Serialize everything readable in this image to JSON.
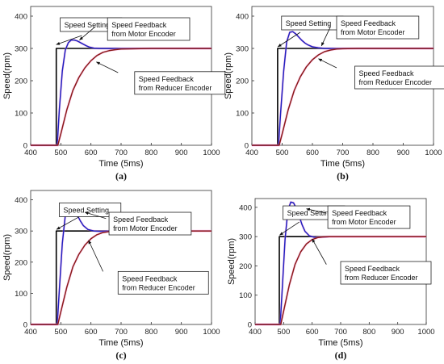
{
  "chart_data": [
    {
      "type": "line",
      "caption": "(a)",
      "xlabel": "Time (5ms)",
      "ylabel": "Speed(rpm)",
      "xlim": [
        400,
        1000
      ],
      "ylim": [
        0,
        430
      ],
      "xticks": [
        "400",
        "500",
        "600",
        "700",
        "800",
        "900",
        "1000"
      ],
      "yticks": [
        "0",
        "100",
        "200",
        "300",
        "400"
      ],
      "grid": false,
      "annotations": {
        "setting": "Speed Setting",
        "motor": [
          "Speed Feedback",
          "from Motor Encoder"
        ],
        "reducer": [
          "Speed Feedback",
          "from Reducer Encoder"
        ]
      },
      "series": [
        {
          "color": "#000000",
          "x": [
            400,
            485,
            485,
            1000
          ],
          "y": [
            0,
            0,
            300,
            300
          ]
        },
        {
          "color": "#1f1fbf",
          "x": [
            400,
            488,
            495,
            505,
            515,
            525,
            535,
            545,
            555,
            565,
            575,
            585,
            595,
            610,
            630,
            660,
            700,
            800,
            900,
            1000
          ],
          "y": [
            0,
            0,
            110,
            230,
            295,
            318,
            326,
            326,
            323,
            318,
            313,
            308,
            304,
            301,
            300,
            300,
            300,
            300,
            300,
            300
          ]
        },
        {
          "color": "#8b1a1a",
          "x": [
            400,
            490,
            500,
            520,
            540,
            560,
            580,
            600,
            620,
            640,
            660,
            680,
            700,
            750,
            800,
            900,
            1000
          ],
          "y": [
            0,
            0,
            35,
            110,
            170,
            210,
            240,
            262,
            278,
            288,
            293,
            296,
            298,
            299,
            300,
            300,
            300
          ]
        }
      ]
    },
    {
      "type": "line",
      "caption": "(b)",
      "xlabel": "Time (5ms)",
      "ylabel": "Speed(rpm)",
      "xlim": [
        400,
        1000
      ],
      "ylim": [
        0,
        430
      ],
      "xticks": [
        "400",
        "500",
        "600",
        "700",
        "800",
        "900",
        "1000"
      ],
      "yticks": [
        "0",
        "100",
        "200",
        "300",
        "400"
      ],
      "grid": false,
      "annotations": {
        "setting": "Speed Setting",
        "motor": [
          "Speed Feedback",
          "from Motor Encoder"
        ],
        "reducer": [
          "Speed Feedback",
          "from Reducer Encoder"
        ]
      },
      "series": [
        {
          "color": "#000000",
          "x": [
            400,
            485,
            485,
            1000
          ],
          "y": [
            0,
            0,
            300,
            300
          ]
        },
        {
          "color": "#1f1fbf",
          "x": [
            400,
            488,
            495,
            505,
            515,
            525,
            535,
            545,
            555,
            565,
            575,
            585,
            600,
            620,
            640,
            670,
            700,
            800,
            900,
            1000
          ],
          "y": [
            0,
            0,
            100,
            230,
            320,
            350,
            352,
            345,
            335,
            325,
            317,
            311,
            305,
            302,
            300,
            300,
            300,
            300,
            300,
            300
          ]
        },
        {
          "color": "#8b1a1a",
          "x": [
            400,
            490,
            500,
            520,
            540,
            560,
            580,
            600,
            620,
            640,
            660,
            680,
            700,
            750,
            800,
            900,
            1000
          ],
          "y": [
            0,
            0,
            35,
            110,
            170,
            212,
            243,
            265,
            280,
            290,
            295,
            298,
            299,
            300,
            300,
            300,
            300
          ]
        }
      ]
    },
    {
      "type": "line",
      "caption": "(c)",
      "xlabel": "Time (5ms)",
      "ylabel": "Speed(rpm)",
      "xlim": [
        400,
        1000
      ],
      "ylim": [
        0,
        430
      ],
      "xticks": [
        "400",
        "500",
        "600",
        "700",
        "800",
        "900",
        "1000"
      ],
      "yticks": [
        "0",
        "100",
        "200",
        "300",
        "400"
      ],
      "grid": false,
      "annotations": {
        "setting": "Speed Setting",
        "motor": [
          "Speed Feedback",
          "from Motor Encoder"
        ],
        "reducer": [
          "Speed Feedback",
          "from Reducer Encoder"
        ]
      },
      "series": [
        {
          "color": "#000000",
          "x": [
            400,
            485,
            485,
            1000
          ],
          "y": [
            0,
            0,
            300,
            300
          ]
        },
        {
          "color": "#1f1fbf",
          "x": [
            400,
            488,
            495,
            505,
            515,
            525,
            535,
            545,
            555,
            565,
            575,
            590,
            610,
            630,
            660,
            700,
            800,
            900,
            1000
          ],
          "y": [
            0,
            0,
            110,
            260,
            350,
            378,
            380,
            368,
            350,
            332,
            317,
            305,
            300,
            299,
            300,
            300,
            300,
            300,
            300
          ]
        },
        {
          "color": "#8b1a1a",
          "x": [
            400,
            490,
            500,
            520,
            540,
            560,
            580,
            600,
            620,
            640,
            660,
            680,
            700,
            750,
            800,
            900,
            1000
          ],
          "y": [
            0,
            0,
            40,
            120,
            185,
            225,
            255,
            275,
            288,
            295,
            298,
            299,
            300,
            300,
            300,
            300,
            300
          ]
        }
      ]
    },
    {
      "type": "line",
      "caption": "(d)",
      "xlabel": "Time (5ms)",
      "ylabel": "Speed(rpm)",
      "xlim": [
        400,
        1000
      ],
      "ylim": [
        0,
        430
      ],
      "xticks": [
        "400",
        "500",
        "600",
        "700",
        "800",
        "900",
        "1000"
      ],
      "yticks": [
        "0",
        "100",
        "200",
        "300",
        "400"
      ],
      "grid": false,
      "annotations": {
        "setting": "Speed Setting",
        "motor": [
          "Speed Feedback",
          "from Motor Encoder"
        ],
        "reducer": [
          "Speed Feedback",
          "from Reducer Encoder"
        ]
      },
      "series": [
        {
          "color": "#000000",
          "x": [
            400,
            485,
            485,
            1000
          ],
          "y": [
            0,
            0,
            300,
            300
          ]
        },
        {
          "color": "#1f1fbf",
          "x": [
            400,
            488,
            495,
            505,
            515,
            525,
            535,
            545,
            555,
            565,
            575,
            590,
            610,
            630,
            660,
            700,
            800,
            900,
            1000
          ],
          "y": [
            0,
            0,
            120,
            290,
            390,
            418,
            415,
            395,
            368,
            340,
            318,
            303,
            297,
            298,
            300,
            300,
            300,
            300,
            300
          ]
        },
        {
          "color": "#8b1a1a",
          "x": [
            400,
            490,
            500,
            520,
            540,
            560,
            580,
            600,
            620,
            640,
            660,
            680,
            700,
            750,
            800,
            900,
            1000
          ],
          "y": [
            0,
            0,
            45,
            135,
            205,
            248,
            275,
            290,
            297,
            299,
            300,
            300,
            300,
            300,
            300,
            300,
            300
          ]
        }
      ]
    }
  ]
}
